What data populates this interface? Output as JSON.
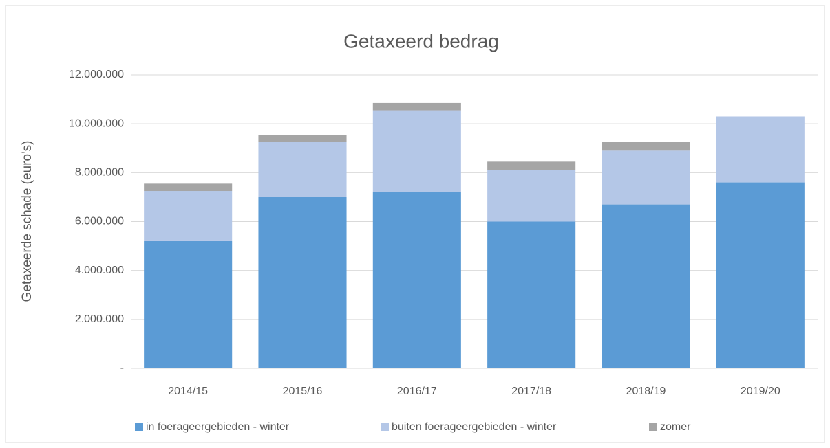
{
  "chart_data": {
    "type": "bar",
    "stacked": true,
    "title": "Getaxeerd bedrag",
    "y_label": "Getaxeerde schade (euro's)",
    "categories": [
      "2014/15",
      "2015/16",
      "2016/17",
      "2017/18",
      "2018/19",
      "2019/20"
    ],
    "series": [
      {
        "name": "in foerageergebieden - winter",
        "color": "#5b9bd5",
        "values": [
          5200000,
          7000000,
          7200000,
          6000000,
          6700000,
          7600000
        ]
      },
      {
        "name": "buiten foerageergebieden - winter",
        "color": "#b4c7e7",
        "values": [
          2050000,
          2250000,
          3350000,
          2100000,
          2200000,
          2700000
        ]
      },
      {
        "name": "zomer",
        "color": "#a5a5a5",
        "values": [
          300000,
          300000,
          300000,
          350000,
          350000,
          0
        ]
      }
    ],
    "ylim": [
      0,
      12000000
    ],
    "yticks": [
      {
        "value": 0,
        "label": "-"
      },
      {
        "value": 2000000,
        "label": "2.000.000"
      },
      {
        "value": 4000000,
        "label": "4.000.000"
      },
      {
        "value": 6000000,
        "label": "6.000.000"
      },
      {
        "value": 8000000,
        "label": "8.000.000"
      },
      {
        "value": 10000000,
        "label": "10.000.000"
      },
      {
        "value": 12000000,
        "label": "12.000.000"
      }
    ],
    "grid": true,
    "legend": "bottom"
  }
}
